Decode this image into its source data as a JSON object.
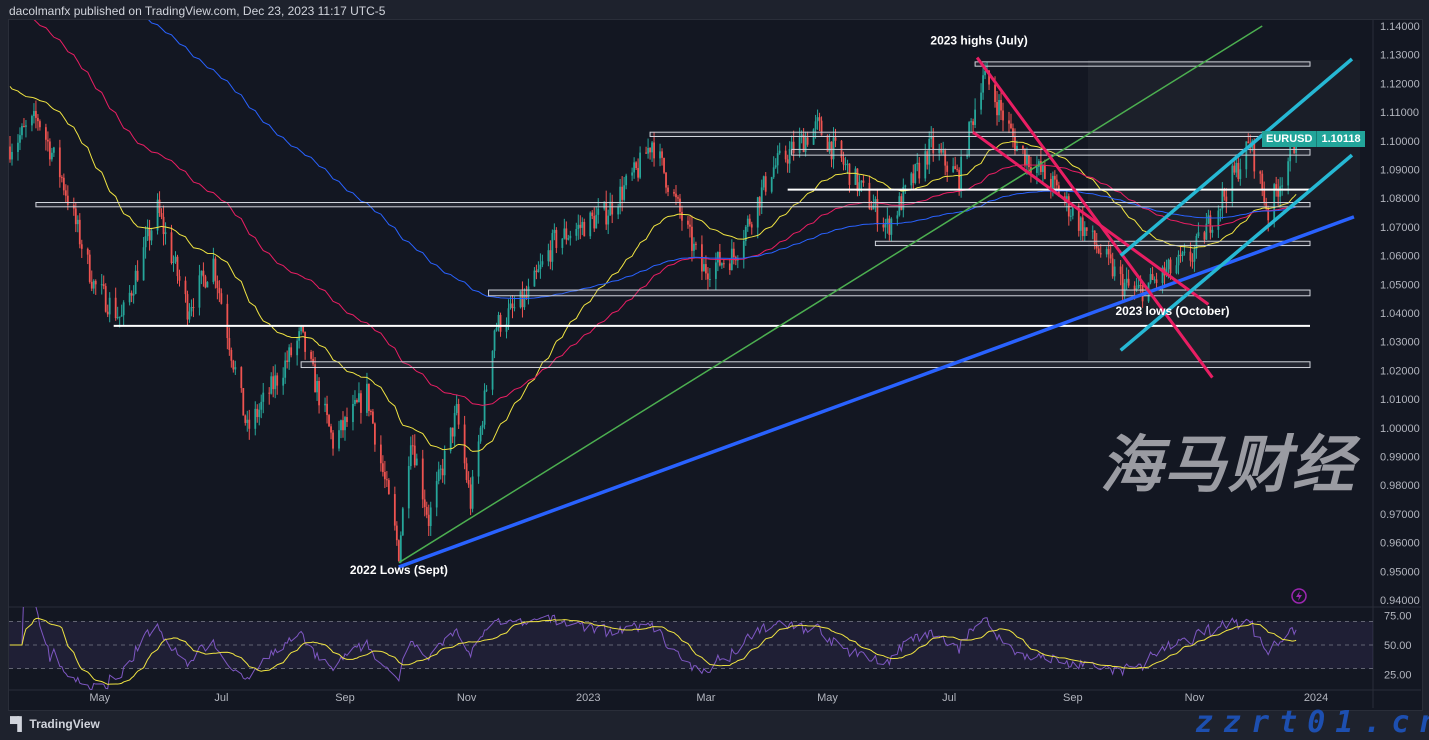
{
  "header": {
    "publish_text": "dacolmanfx published on TradingView.com, Dec 23, 2023 11:17 UTC-5"
  },
  "footer": {
    "brand": "TradingView"
  },
  "watermark": {
    "cn": "海马财经",
    "url": "zzrt01.cn"
  },
  "symbol_tag": {
    "symbol": "EURUSD",
    "price": "1.10118"
  },
  "colors": {
    "bg": "#131722",
    "up": "#26a69a",
    "down": "#ef5350",
    "ma50": "#f0e442",
    "ma100": "#e91e63",
    "ma200": "#2962ff",
    "green_trend": "#4caf50",
    "blue_trend": "#2962ff",
    "pink_channel": "#e91e63",
    "cyan_channel": "#26b8d4",
    "rsi": "#7e57c2"
  },
  "chart_data": {
    "type": "candlestick",
    "symbol": "EURUSD",
    "timeframe": "daily",
    "ylim": [
      0.94,
      1.14
    ],
    "y_ticks": [
      "1.14000",
      "1.13000",
      "1.12000",
      "1.11000",
      "1.10000",
      "1.09000",
      "1.08000",
      "1.07000",
      "1.06000",
      "1.05000",
      "1.04000",
      "1.03000",
      "1.02000",
      "1.01000",
      "1.00000",
      "0.99000",
      "0.98000",
      "0.97000",
      "0.96000",
      "0.95000",
      "0.94000"
    ],
    "x_ticks": [
      {
        "label": "May",
        "date": "2022-05-01"
      },
      {
        "label": "Jul",
        "date": "2022-07-01"
      },
      {
        "label": "Sep",
        "date": "2022-09-01"
      },
      {
        "label": "Nov",
        "date": "2022-11-01"
      },
      {
        "label": "2023",
        "date": "2023-01-01"
      },
      {
        "label": "Mar",
        "date": "2023-03-01"
      },
      {
        "label": "May",
        "date": "2023-05-01"
      },
      {
        "label": "Jul",
        "date": "2023-07-01"
      },
      {
        "label": "Sep",
        "date": "2023-09-01"
      },
      {
        "label": "Nov",
        "date": "2023-11-01"
      },
      {
        "label": "2024",
        "date": "2024-01-01"
      }
    ],
    "x_range": [
      "2022-03-17",
      "2024-01-20"
    ],
    "price_path": [
      [
        "2022-03-17",
        1.098
      ],
      [
        "2022-03-31",
        1.108
      ],
      [
        "2022-04-12",
        1.087
      ],
      [
        "2022-04-28",
        1.05
      ],
      [
        "2022-05-12",
        1.038
      ],
      [
        "2022-05-30",
        1.076
      ],
      [
        "2022-06-14",
        1.042
      ],
      [
        "2022-06-27",
        1.058
      ],
      [
        "2022-07-14",
        0.999
      ],
      [
        "2022-08-10",
        1.032
      ],
      [
        "2022-08-26",
        0.995
      ],
      [
        "2022-09-12",
        1.012
      ],
      [
        "2022-09-28",
        0.957
      ],
      [
        "2022-10-04",
        0.998
      ],
      [
        "2022-10-13",
        0.968
      ],
      [
        "2022-10-27",
        1.005
      ],
      [
        "2022-11-03",
        0.974
      ],
      [
        "2022-11-15",
        1.035
      ],
      [
        "2022-12-01",
        1.045
      ],
      [
        "2022-12-15",
        1.065
      ],
      [
        "2023-01-10",
        1.075
      ],
      [
        "2023-01-26",
        1.09
      ],
      [
        "2023-02-02",
        1.1
      ],
      [
        "2023-02-27",
        1.055
      ],
      [
        "2023-03-15",
        1.06
      ],
      [
        "2023-04-03",
        1.09
      ],
      [
        "2023-04-26",
        1.105
      ],
      [
        "2023-05-31",
        1.07
      ],
      [
        "2023-06-22",
        1.098
      ],
      [
        "2023-07-06",
        1.087
      ],
      [
        "2023-07-18",
        1.124
      ],
      [
        "2023-08-04",
        1.098
      ],
      [
        "2023-08-24",
        1.083
      ],
      [
        "2023-09-26",
        1.05
      ],
      [
        "2023-10-03",
        1.047
      ],
      [
        "2023-10-31",
        1.06
      ],
      [
        "2023-11-29",
        1.099
      ],
      [
        "2023-12-08",
        1.075
      ],
      [
        "2023-12-22",
        1.101
      ]
    ],
    "moving_averages": [
      {
        "name": "MA 50",
        "color": "#f0e442"
      },
      {
        "name": "MA 100",
        "color": "#e91e63"
      },
      {
        "name": "MA 200",
        "color": "#2962ff"
      }
    ],
    "horizontal_levels": [
      {
        "type": "zone",
        "from": 1.126,
        "to": 1.1275,
        "start": "2023-07-14"
      },
      {
        "type": "zone",
        "from": 1.095,
        "to": 1.097,
        "start": "2023-04-13"
      },
      {
        "type": "zone",
        "from": 1.1015,
        "to": 1.103,
        "start": "2023-02-01"
      },
      {
        "type": "line",
        "value": 1.083,
        "start": "2023-04-11"
      },
      {
        "type": "zone",
        "from": 1.077,
        "to": 1.0785,
        "start": "2022-03-30"
      },
      {
        "type": "zone",
        "from": 1.0635,
        "to": 1.065,
        "start": "2023-05-25"
      },
      {
        "type": "zone",
        "from": 1.046,
        "to": 1.048,
        "start": "2022-11-12"
      },
      {
        "type": "line",
        "value": 1.0355,
        "start": "2022-05-08"
      },
      {
        "type": "zone",
        "from": 1.021,
        "to": 1.023,
        "start": "2022-08-10"
      }
    ],
    "trendlines": [
      {
        "name": "green",
        "from": [
          "2022-09-28",
          0.953
        ],
        "to": [
          "2023-12-05",
          1.14
        ]
      },
      {
        "name": "blue",
        "from": [
          "2022-09-28",
          0.9515
        ],
        "to": [
          "2024-01-20",
          1.0735
        ]
      },
      {
        "name": "pink-upper",
        "from": [
          "2023-07-15",
          1.129
        ],
        "to": [
          "2023-11-10",
          1.0175
        ]
      },
      {
        "name": "pink-lower",
        "from": [
          "2023-07-13",
          1.103
        ],
        "to": [
          "2023-11-08",
          1.043
        ]
      },
      {
        "name": "cyan-upper",
        "from": [
          "2023-09-25",
          1.06
        ],
        "to": [
          "2024-01-19",
          1.1285
        ]
      },
      {
        "name": "cyan-lower",
        "from": [
          "2023-09-25",
          1.027
        ],
        "to": [
          "2024-01-19",
          1.095
        ]
      }
    ],
    "annotations": [
      {
        "text": "2023 highs (July)",
        "date": "2023-07-16",
        "price": 1.1335
      },
      {
        "text": "2022 Lows (Sept)",
        "date": "2022-09-28",
        "price": 0.949
      },
      {
        "text": "2023 lows (October)",
        "date": "2023-10-21",
        "price": 1.0393
      }
    ],
    "rsi": {
      "period": 14,
      "levels": [
        70,
        50,
        30
      ],
      "y_ticks": [
        "75.00",
        "50.00",
        "25.00"
      ],
      "ylim": [
        17,
        83
      ]
    }
  }
}
